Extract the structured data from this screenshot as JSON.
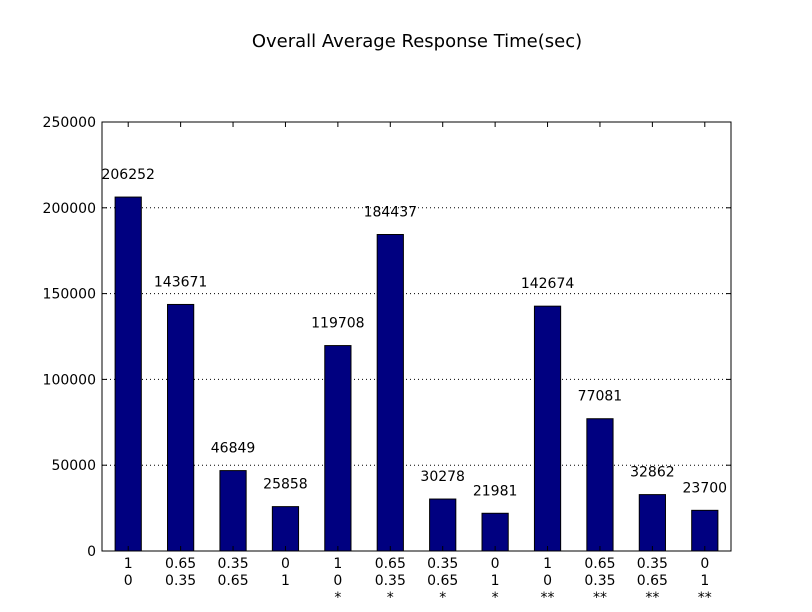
{
  "chart_data": {
    "type": "bar",
    "title": "Overall Average Response Time(sec)",
    "xlabel": "",
    "ylabel": "",
    "ylim": [
      0,
      250000
    ],
    "yticks": [
      0,
      50000,
      100000,
      150000,
      200000,
      250000
    ],
    "ytick_labels": [
      "0",
      "50000",
      "100000",
      "150000",
      "200000",
      "250000"
    ],
    "grid": "horizontal dotted",
    "bar_color": "#000080",
    "categories": [
      [
        "1",
        "0",
        ""
      ],
      [
        "0.65",
        "0.35",
        ""
      ],
      [
        "0.35",
        "0.65",
        ""
      ],
      [
        "0",
        "1",
        ""
      ],
      [
        "1",
        "0",
        "*"
      ],
      [
        "0.65",
        "0.35",
        "*"
      ],
      [
        "0.35",
        "0.65",
        "*"
      ],
      [
        "0",
        "1",
        "*"
      ],
      [
        "1",
        "0",
        "**"
      ],
      [
        "0.65",
        "0.35",
        "**"
      ],
      [
        "0.35",
        "0.65",
        "**"
      ],
      [
        "0",
        "1",
        "**"
      ]
    ],
    "values": [
      206252,
      143671,
      46849,
      25858,
      119708,
      184437,
      30278,
      21981,
      142674,
      77081,
      32862,
      23700
    ],
    "data_labels": [
      "206252",
      "143671",
      "46849",
      "25858",
      "119708",
      "184437",
      "30278",
      "21981",
      "142674",
      "77081",
      "32862",
      "23700"
    ]
  }
}
